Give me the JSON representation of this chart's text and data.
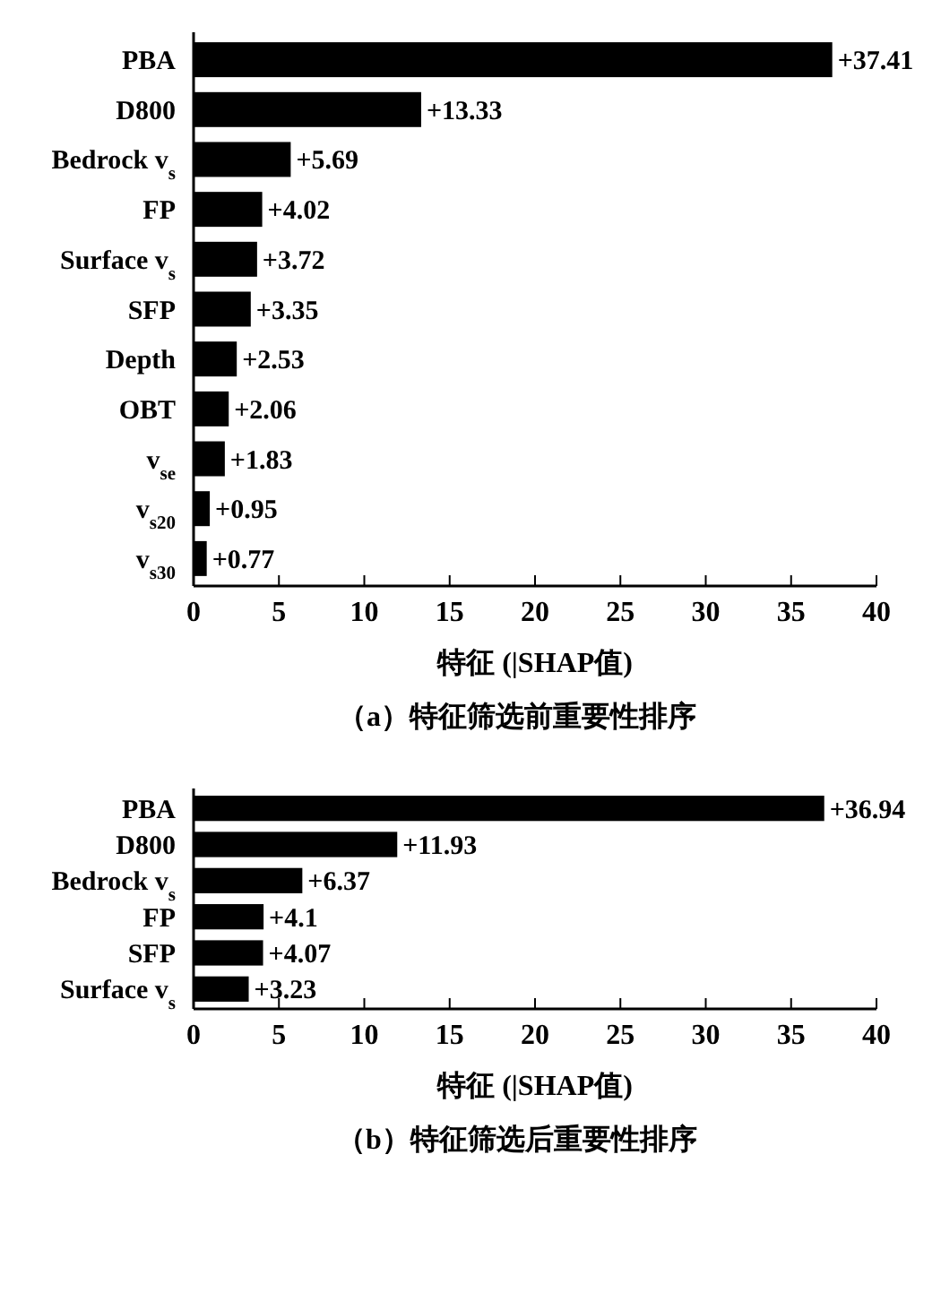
{
  "chart_data": [
    {
      "type": "bar",
      "orientation": "horizontal",
      "title": "（a）特征筛选前重要性排序",
      "xlabel": "特征 (|SHAP值)",
      "categories": [
        "PBA",
        "D800",
        "Bedrock v$_{s}$",
        "FP",
        "Surface v$_{s}$",
        "SFP",
        "Depth",
        "OBT",
        "v$_{se}$",
        "v$_{s20}$",
        "v$_{s30}$"
      ],
      "series": [
        {
          "color": "#000000",
          "values": [
            37.41,
            13.33,
            5.69,
            4.02,
            3.72,
            3.35,
            2.53,
            2.06,
            1.83,
            0.95,
            0.77
          ],
          "value_labels": [
            "+37.41",
            "+13.33",
            "+5.69",
            "+4.02",
            "+3.72",
            "+3.35",
            "+2.53",
            "+2.06",
            "+1.83",
            "+0.95",
            "+0.77"
          ]
        }
      ],
      "xlim": [
        0,
        40
      ],
      "xticks": [
        0,
        5,
        10,
        15,
        20,
        25,
        30,
        35,
        40
      ],
      "grid": false
    },
    {
      "type": "bar",
      "orientation": "horizontal",
      "title": "（b）特征筛选后重要性排序",
      "xlabel": "特征 (|SHAP值)",
      "categories": [
        "PBA",
        "D800",
        "Bedrock v$_{s}$",
        "FP",
        "SFP",
        "Surface v$_{s}$"
      ],
      "series": [
        {
          "color": "#000000",
          "values": [
            36.94,
            11.93,
            6.37,
            4.1,
            4.07,
            3.23
          ],
          "value_labels": [
            "+36.94",
            "+11.93",
            "+6.37",
            "+4.1",
            "+4.07",
            "+3.23"
          ]
        }
      ],
      "xlim": [
        0,
        40
      ],
      "xticks": [
        0,
        5,
        10,
        15,
        20,
        25,
        30,
        35,
        40
      ],
      "grid": false
    }
  ]
}
